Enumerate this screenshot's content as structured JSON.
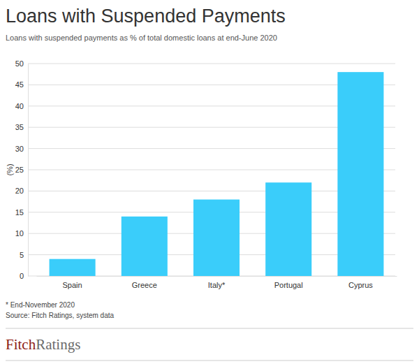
{
  "chart_data": {
    "type": "bar",
    "title": "Loans with Suspended Payments",
    "subtitle": "Loans with suspended payments as % of total domestic loans at end-June 2020",
    "y_label": "(%)",
    "categories": [
      "Spain",
      "Greece",
      "Italy*",
      "Portugal",
      "Cyprus"
    ],
    "values": [
      4,
      14,
      18,
      22,
      48
    ],
    "color": "#3acdfa",
    "ylim": [
      0,
      50
    ],
    "yticks": [
      0,
      5,
      10,
      15,
      20,
      25,
      30,
      35,
      40,
      45,
      50
    ],
    "grid": true,
    "annotations": [
      "* End-November 2020",
      "Source: Fitch Ratings, system data"
    ]
  },
  "logo": [
    "Fitch",
    "Ratings"
  ]
}
